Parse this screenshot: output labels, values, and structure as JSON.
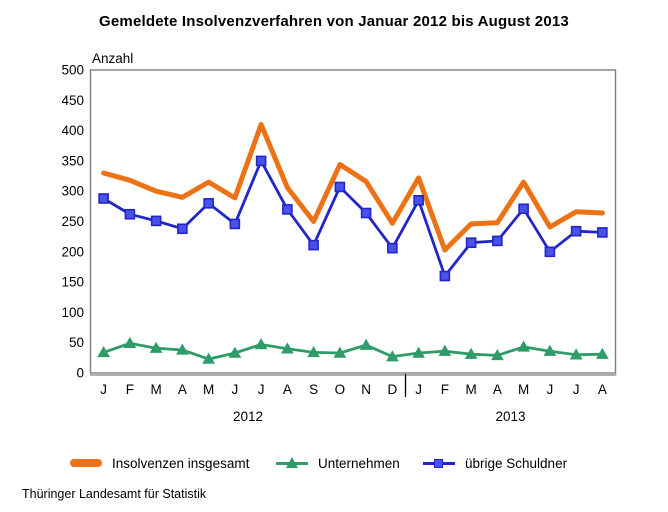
{
  "title": "Gemeldete Insolvenzverfahren von Januar 2012 bis August 2013",
  "footer": "Thüringer Landesamt für Statistik",
  "chart_data": {
    "type": "line",
    "title": "Gemeldete Insolvenzverfahren von Januar 2012 bis August 2013",
    "ylabel": "Anzahl",
    "xlabel": "",
    "ylim": [
      0,
      500
    ],
    "grid": false,
    "legend_position": "bottom",
    "yticks": [
      500,
      450,
      400,
      350,
      300,
      250,
      200,
      150,
      100,
      50,
      0
    ],
    "categories": [
      "J",
      "F",
      "M",
      "A",
      "M",
      "J",
      "J",
      "A",
      "S",
      "O",
      "N",
      "D",
      "J",
      "F",
      "M",
      "A",
      "M",
      "J",
      "J",
      "A"
    ],
    "year_groups": [
      {
        "label": "2012",
        "from": 0,
        "to": 11
      },
      {
        "label": "2013",
        "from": 12,
        "to": 19
      }
    ],
    "series": [
      {
        "name": "Insolvenzen insgesamt",
        "color": "#ED7216",
        "marker": "none",
        "line_width": 5,
        "values": [
          330,
          318,
          300,
          290,
          315,
          289,
          410,
          306,
          250,
          344,
          316,
          247,
          322,
          203,
          246,
          248,
          315,
          241,
          266,
          264
        ]
      },
      {
        "name": "Unternehmen",
        "color": "#2F9C68",
        "marker": "triangle",
        "marker_fill": "#2F9C68",
        "line_width": 2.8,
        "values": [
          34,
          49,
          41,
          38,
          23,
          33,
          47,
          40,
          34,
          33,
          46,
          27,
          33,
          36,
          31,
          29,
          43,
          36,
          30,
          31
        ]
      },
      {
        "name": "übrige Schuldner",
        "color": "#2226C9",
        "marker": "square",
        "marker_fill": "#4A52E6",
        "line_width": 2.8,
        "values": [
          288,
          262,
          251,
          238,
          280,
          246,
          350,
          270,
          211,
          307,
          264,
          206,
          285,
          160,
          215,
          218,
          271,
          200,
          234,
          232
        ]
      }
    ],
    "axis_separator_between": [
      "D",
      "J"
    ]
  }
}
